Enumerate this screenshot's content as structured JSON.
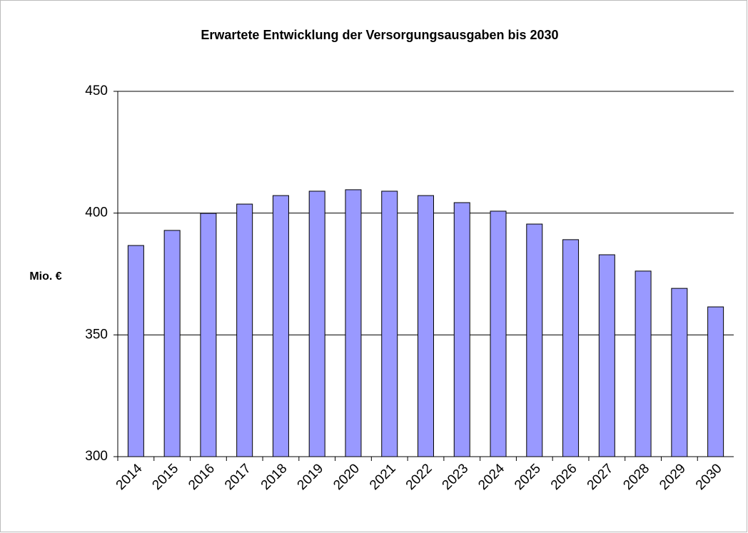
{
  "chart_data": {
    "type": "bar",
    "title": "Erwartete Entwicklung der Versorgungsausgaben bis 2030",
    "ylabel": "Mio. €",
    "categories": [
      "2014",
      "2015",
      "2016",
      "2017",
      "2018",
      "2019",
      "2020",
      "2021",
      "2022",
      "2023",
      "2024",
      "2025",
      "2026",
      "2027",
      "2028",
      "2029",
      "2030"
    ],
    "values": [
      386.7,
      392.9,
      399.9,
      403.7,
      407.2,
      409,
      409.6,
      409,
      407.2,
      404.3,
      400.8,
      395.5,
      389.1,
      382.9,
      376.2,
      369.1,
      361.5
    ],
    "color": "#9999ff",
    "ylim": [
      300,
      450
    ],
    "yticks": [
      300,
      350,
      400,
      450
    ],
    "grid": true
  }
}
